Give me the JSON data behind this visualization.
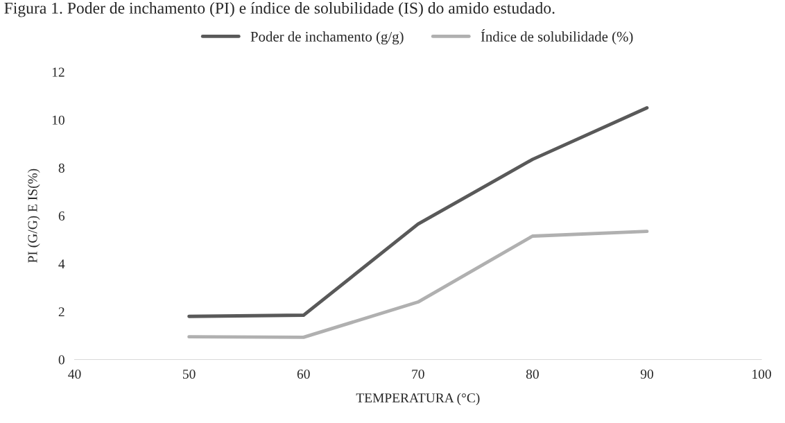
{
  "chart_data": {
    "type": "line",
    "title": "Figura 1. Poder de inchamento (PI) e índice de solubilidade (IS) do amido estudado.",
    "xlabel": "TEMPERATURA (°C)",
    "ylabel": "PI (G/G) E IS(%)",
    "x": [
      50,
      60,
      70,
      80,
      90
    ],
    "series": [
      {
        "name": "Poder de inchamento (g/g)",
        "color": "#595959",
        "values": [
          1.8,
          1.85,
          5.65,
          8.35,
          10.5
        ]
      },
      {
        "name": "Índice de solubilidade (%)",
        "color": "#b0b0b0",
        "values": [
          0.95,
          0.93,
          2.4,
          5.15,
          5.35
        ]
      }
    ],
    "xlim": [
      40,
      100
    ],
    "xticks": [
      40,
      50,
      60,
      70,
      80,
      90,
      100
    ],
    "ylim": [
      0,
      12
    ],
    "yticks": [
      0,
      2,
      4,
      6,
      8,
      10,
      12
    ],
    "grid": false,
    "legend": "top",
    "marker": "none",
    "line_style": "solid"
  }
}
